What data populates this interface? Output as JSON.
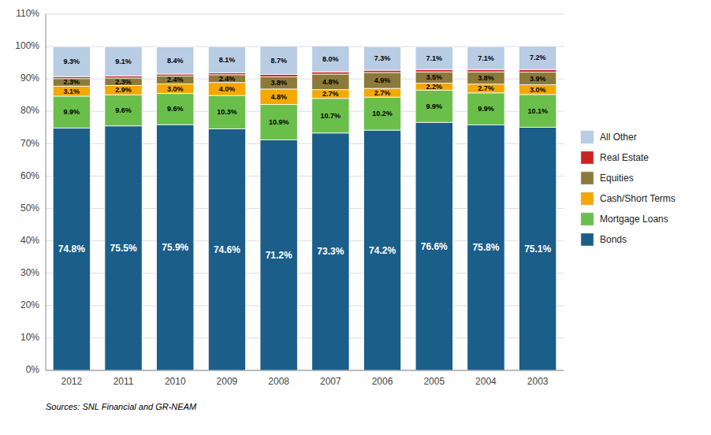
{
  "chart_data": {
    "type": "bar",
    "stacked": true,
    "categories": [
      "2012",
      "2011",
      "2010",
      "2009",
      "2008",
      "2007",
      "2006",
      "2005",
      "2004",
      "2003"
    ],
    "series": [
      {
        "name": "Bonds",
        "color": "#1b5e8a",
        "values": [
          74.8,
          75.5,
          75.9,
          74.6,
          71.2,
          73.3,
          74.2,
          76.6,
          75.8,
          75.1
        ],
        "value_labels": [
          "74.8%",
          "75.5%",
          "75.9%",
          "74.6%",
          "71.2%",
          "73.3%",
          "74.2%",
          "76.6%",
          "75.8%",
          "75.1%"
        ]
      },
      {
        "name": "Mortgage Loans",
        "color": "#6abf4b",
        "values": [
          9.9,
          9.6,
          9.6,
          10.3,
          10.9,
          10.7,
          10.2,
          9.9,
          9.9,
          10.1
        ],
        "value_labels": [
          "9.9%",
          "9.6%",
          "9.6%",
          "10.3%",
          "10.9%",
          "10.7%",
          "10.2%",
          "9.9%",
          "9.9%",
          "10.1%"
        ]
      },
      {
        "name": "Cash/Short Terms",
        "color": "#f5a800",
        "values": [
          3.1,
          2.9,
          3.0,
          4.0,
          4.8,
          2.7,
          2.7,
          2.2,
          2.7,
          3.0
        ],
        "value_labels": [
          "3.1%",
          "2.9%",
          "3.0%",
          "4.0%",
          "4.8%",
          "2.7%",
          "2.7%",
          "2.2%",
          "2.7%",
          "3.0%"
        ]
      },
      {
        "name": "Equities",
        "color": "#8b7a3a",
        "values": [
          2.3,
          2.3,
          2.4,
          2.4,
          3.8,
          4.8,
          4.9,
          3.5,
          3.8,
          3.9
        ],
        "value_labels": [
          "2.3%",
          "2.3%",
          "2.4%",
          "2.4%",
          "3.8%",
          "4.8%",
          "4.9%",
          "3.5%",
          "3.8%",
          "3.9%"
        ]
      },
      {
        "name": "Real Estate",
        "color": "#cc2222",
        "data_labels": false,
        "values": [
          0.6,
          0.6,
          0.6,
          0.6,
          0.7,
          0.7,
          0.7,
          0.7,
          0.7,
          0.8
        ]
      },
      {
        "name": "All Other",
        "color": "#b8cce4",
        "values": [
          9.3,
          9.1,
          8.4,
          8.1,
          8.7,
          8.0,
          7.3,
          7.1,
          7.1,
          7.2
        ],
        "value_labels": [
          "9.3%",
          "9.1%",
          "8.4%",
          "8.1%",
          "8.7%",
          "8.0%",
          "7.3%",
          "7.1%",
          "7.1%",
          "7.2%"
        ]
      }
    ],
    "ylim": [
      0,
      110
    ],
    "yticks": [
      {
        "value": 0,
        "label": "0%"
      },
      {
        "value": 10,
        "label": "10%"
      },
      {
        "value": 20,
        "label": "20%"
      },
      {
        "value": 30,
        "label": "30%"
      },
      {
        "value": 40,
        "label": "40%"
      },
      {
        "value": 50,
        "label": "50%"
      },
      {
        "value": 60,
        "label": "60%"
      },
      {
        "value": 70,
        "label": "70%"
      },
      {
        "value": 80,
        "label": "80%"
      },
      {
        "value": 90,
        "label": "90%"
      },
      {
        "value": 100,
        "label": "100%"
      },
      {
        "value": 110,
        "label": "110%"
      }
    ],
    "grid": true,
    "legend": "right",
    "data_labels": true,
    "annotations": [
      "Sources: SNL Financial and GR-NEAM"
    ]
  }
}
